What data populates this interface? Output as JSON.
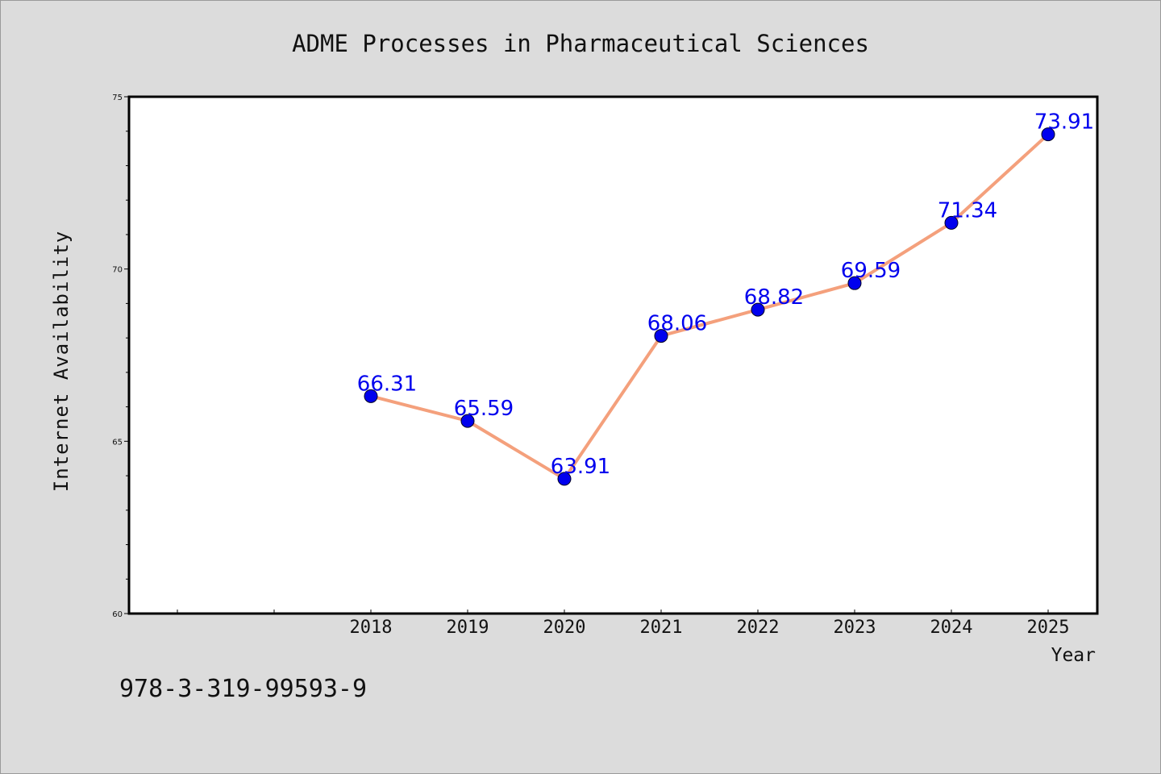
{
  "chart_data": {
    "type": "line",
    "title": "ADME Processes in Pharmaceutical Sciences",
    "xlabel": "Year",
    "ylabel": "Internet Availability",
    "x": [
      "2018",
      "2019",
      "2020",
      "2021",
      "2022",
      "2023",
      "2024",
      "2025"
    ],
    "series": [
      {
        "values": [
          66.31,
          65.59,
          63.91,
          68.06,
          68.82,
          69.59,
          71.34,
          73.91
        ]
      }
    ],
    "data_labels": [
      "66.31",
      "65.59",
      "63.91",
      "68.06",
      "68.82",
      "69.59",
      "71.34",
      "73.91"
    ],
    "ylim": [
      60,
      75
    ],
    "yticks": [
      "60",
      "65",
      "70",
      "75"
    ],
    "grid": false,
    "legend": "none",
    "colors": {
      "line": "#f4a07c",
      "marker": "#0000ee",
      "label": "#0000ee",
      "background": "#dcdcdc",
      "plot_background": "#ffffff"
    }
  },
  "annotation": {
    "isbn": "978-3-319-99593-9"
  }
}
